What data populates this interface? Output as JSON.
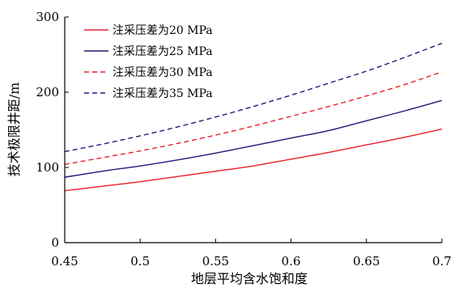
{
  "chart_data": {
    "type": "line",
    "title": "",
    "xlabel": "地层平均含水饱和度",
    "ylabel": "技术极限井距/m",
    "xlim": [
      0.45,
      0.7
    ],
    "ylim": [
      0,
      300
    ],
    "x_ticks": [
      0.45,
      0.5,
      0.55,
      0.6,
      0.65,
      0.7
    ],
    "x_tick_labels": [
      "0.45",
      "0.5",
      "0.55",
      "0.6",
      "0.65",
      "0.7"
    ],
    "y_ticks": [
      0,
      100,
      200,
      300
    ],
    "y_tick_labels": [
      "0",
      "100",
      "200",
      "300"
    ],
    "grid": false,
    "legend_position": "top-left",
    "x": [
      0.45,
      0.475,
      0.5,
      0.525,
      0.55,
      0.575,
      0.6,
      0.625,
      0.65,
      0.675,
      0.7
    ],
    "series": [
      {
        "name": "注采压差为20 MPa",
        "color": "#e8202a",
        "dash": "solid",
        "values": [
          69,
          75,
          81,
          88,
          95,
          102,
          111,
          120,
          130,
          140,
          151
        ]
      },
      {
        "name": "注采压差为25 MPa",
        "color": "#1c1c7a",
        "dash": "solid",
        "values": [
          87,
          95,
          102,
          110,
          119,
          129,
          139,
          149,
          162,
          175,
          189
        ]
      },
      {
        "name": "注采压差为30 MPa",
        "color": "#e8202a",
        "dash": "dashed",
        "values": [
          104,
          113,
          122,
          132,
          143,
          155,
          168,
          181,
          195,
          210,
          227
        ]
      },
      {
        "name": "注采压差为35 MPa",
        "color": "#1c1c7a",
        "dash": "dashed",
        "values": [
          121,
          131,
          142,
          154,
          167,
          181,
          196,
          212,
          228,
          246,
          265
        ]
      }
    ]
  }
}
